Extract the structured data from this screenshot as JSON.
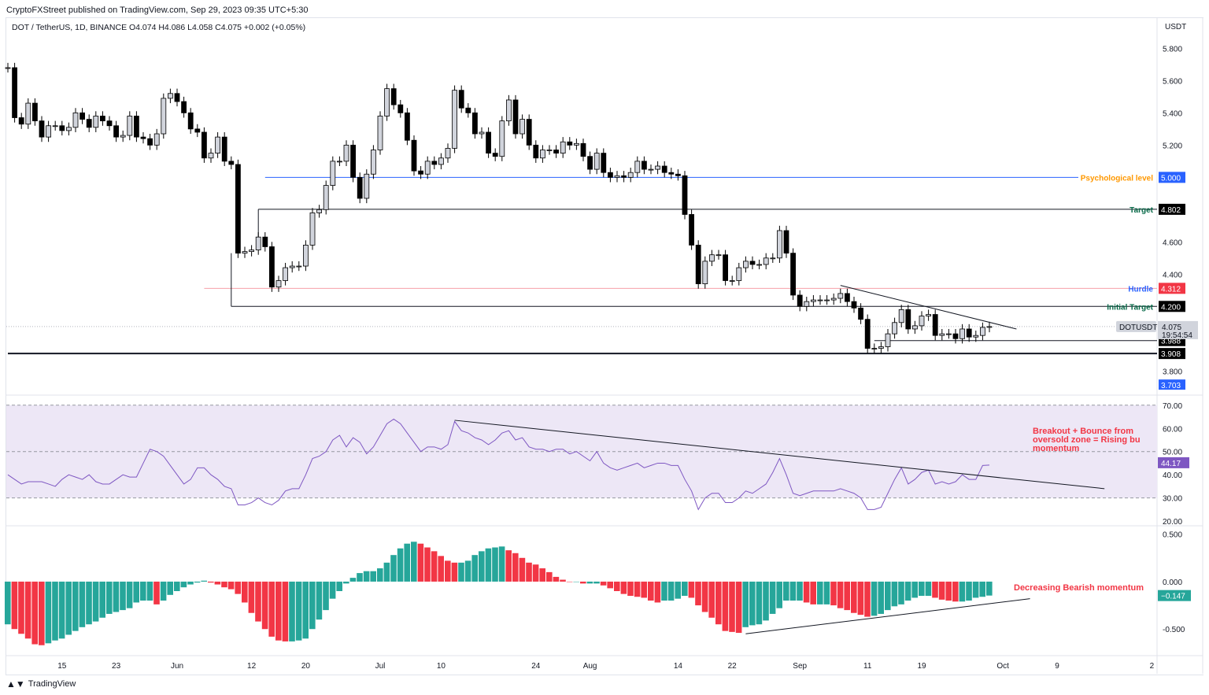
{
  "header": {
    "published": "CryptoFXStreet published on TradingView.com, Sep 29, 2023 09:35 UTC+5:30",
    "symbol_line": "DOT / TetherUS, 1D, BINANCE  O4.074  H4.086  L4.058  C4.075  +0.002 (+0.05%)",
    "currency": "USDT"
  },
  "footer": {
    "brand": "TradingView"
  },
  "colors": {
    "up_fill": "#d1d4dc",
    "down_fill": "#000000",
    "hist_up": "#26a69a",
    "hist_down": "#f23645",
    "rsi": "#7e57c2",
    "rsi_band": "#ede7f6",
    "blue": "#2962ff",
    "red": "#f23645",
    "orange": "#ff9800",
    "green_text": "#0a6b4a"
  },
  "chart_data": [
    {
      "type": "candlestick",
      "title": "DOT / TetherUS, 1D, BINANCE",
      "start_date": "2023-05-07",
      "close": [
        5.68,
        5.37,
        5.33,
        5.46,
        5.35,
        5.25,
        5.32,
        5.32,
        5.29,
        5.31,
        5.4,
        5.36,
        5.31,
        5.38,
        5.35,
        5.32,
        5.25,
        5.26,
        5.38,
        5.25,
        5.24,
        5.2,
        5.27,
        5.49,
        5.52,
        5.47,
        5.4,
        5.3,
        5.28,
        5.12,
        5.15,
        5.25,
        5.1,
        5.08,
        4.53,
        4.54,
        4.55,
        4.63,
        4.57,
        4.32,
        4.36,
        4.44,
        4.45,
        4.45,
        4.58,
        4.78,
        4.8,
        4.95,
        5.1,
        5.1,
        5.2,
        5.0,
        4.87,
        5.02,
        5.17,
        5.38,
        5.55,
        5.45,
        5.4,
        5.23,
        5.04,
        5.02,
        5.1,
        5.08,
        5.12,
        5.18,
        5.54,
        5.43,
        5.4,
        5.27,
        5.28,
        5.15,
        5.13,
        5.35,
        5.48,
        5.27,
        5.36,
        5.2,
        5.12,
        5.17,
        5.17,
        5.15,
        5.22,
        5.2,
        5.21,
        5.13,
        5.05,
        5.15,
        5.03,
        5.0,
        5.01,
        5.0,
        5.03,
        5.1,
        5.05,
        5.05,
        5.07,
        5.03,
        5.02,
        5.01,
        4.77,
        4.58,
        4.34,
        4.48,
        4.52,
        4.52,
        4.36,
        4.36,
        4.44,
        4.48,
        4.46,
        4.46,
        4.5,
        4.5,
        4.67,
        4.53,
        4.27,
        4.2,
        4.23,
        4.24,
        4.24,
        4.24,
        4.25,
        4.28,
        4.23,
        4.19,
        4.12,
        3.94,
        3.94,
        3.95,
        4.03,
        4.1,
        4.18,
        4.06,
        4.08,
        4.14,
        4.15,
        4.02,
        4.03,
        4.03,
        4.0,
        4.06,
        4.01,
        4.02,
        4.07,
        4.075
      ],
      "last": {
        "open": 4.074,
        "high": 4.086,
        "low": 4.058,
        "close": 4.075
      },
      "ylim": [
        3.65,
        5.88
      ],
      "y_ticks": [
        "5.800",
        "5.600",
        "5.400",
        "5.200",
        "5.000",
        "4.800",
        "4.600",
        "4.400",
        "4.200",
        "4.000",
        "3.800"
      ],
      "levels": [
        {
          "label": "Psychological level",
          "value": "5.000",
          "from": "2023-06-14",
          "color": "#2962ff",
          "text_color": "#ff9800"
        },
        {
          "label": "Target",
          "value": "4.802",
          "from": "2023-06-13",
          "color": "#131722",
          "text_color": "#0a6b4a"
        },
        {
          "label": "Hurdle",
          "value": "4.312",
          "from": "2023-06-05",
          "color": "#f7a1a9",
          "text_color": "#2962ff"
        },
        {
          "label": "Initial Target",
          "value": "4.200",
          "from": "2023-06-09",
          "color": "#131722",
          "text_color": "#0a6b4a"
        },
        {
          "label": "",
          "value": "3.988",
          "from": "2023-09-12",
          "color": "#131722",
          "text_color": ""
        },
        {
          "label": "",
          "value": "3.908",
          "from": "2023-05-07",
          "color": "#131722",
          "text_color": ""
        }
      ],
      "price_tag": {
        "symbol": "DOTUSDT",
        "price": "4.075",
        "countdown": "19:54:54"
      },
      "extra_tag": "3.703",
      "trendline": {
        "from": [
          "2023-09-07",
          4.33
        ],
        "to": [
          "2023-10-03",
          4.06
        ]
      }
    },
    {
      "type": "line",
      "series_label": "RSI",
      "ylim": [
        18,
        74
      ],
      "y_ticks": [
        "70.00",
        "60.00",
        "50.00",
        "40.00",
        "30.00",
        "20.00"
      ],
      "band": [
        30,
        70
      ],
      "values": [
        40,
        38,
        36,
        37,
        37,
        37,
        36,
        35,
        38,
        40,
        39,
        38,
        40,
        37,
        36,
        36,
        38,
        40,
        39,
        39,
        45,
        51,
        50,
        48,
        44,
        40,
        36,
        38,
        43,
        43,
        40,
        38,
        35,
        34,
        27,
        27,
        28,
        30,
        28,
        27,
        29,
        33,
        34,
        34,
        40,
        47,
        48,
        50,
        55,
        57,
        52,
        56,
        54,
        49,
        52,
        57,
        62,
        64,
        62,
        58,
        54,
        50,
        52,
        52,
        51,
        53,
        63,
        59,
        58,
        56,
        55,
        53,
        55,
        58,
        59,
        55,
        56,
        52,
        51,
        51,
        50,
        51,
        51,
        49,
        50,
        48,
        46,
        50,
        45,
        43,
        42,
        43,
        44,
        45,
        43,
        44,
        45,
        45,
        44,
        44,
        38,
        33,
        25,
        30,
        32,
        32,
        28,
        28,
        30,
        33,
        32,
        34,
        36,
        41,
        47,
        40,
        32,
        31,
        32,
        33,
        33,
        33,
        33,
        34,
        33,
        32,
        30,
        25,
        25,
        26,
        32,
        38,
        43,
        36,
        38,
        41,
        42,
        36,
        37,
        36,
        37,
        40,
        38,
        38,
        44,
        44.17
      ],
      "last_label": "44.17",
      "trendline": {
        "from": [
          "2023-07-12",
          63.5
        ],
        "to": [
          "2023-10-16",
          34
        ]
      },
      "annotation": "Breakout + Bounce from oversold zone = Rising bu momentum"
    },
    {
      "type": "bar",
      "ylim": [
        -0.78,
        0.58
      ],
      "y_ticks": [
        "0.500",
        "0.000",
        "-0.500"
      ],
      "values": [
        -0.45,
        -0.5,
        -0.55,
        -0.6,
        -0.66,
        -0.67,
        -0.65,
        -0.62,
        -0.6,
        -0.56,
        -0.52,
        -0.48,
        -0.45,
        -0.42,
        -0.38,
        -0.34,
        -0.32,
        -0.3,
        -0.28,
        -0.22,
        -0.2,
        -0.2,
        -0.24,
        -0.2,
        -0.14,
        -0.1,
        -0.06,
        -0.03,
        -0.01,
        0.01,
        -0.01,
        -0.03,
        -0.06,
        -0.08,
        -0.13,
        -0.22,
        -0.33,
        -0.42,
        -0.5,
        -0.58,
        -0.62,
        -0.63,
        -0.63,
        -0.62,
        -0.6,
        -0.5,
        -0.4,
        -0.3,
        -0.18,
        -0.1,
        -0.02,
        0.04,
        0.09,
        0.11,
        0.11,
        0.14,
        0.2,
        0.28,
        0.35,
        0.4,
        0.42,
        0.4,
        0.36,
        0.32,
        0.27,
        0.22,
        0.2,
        0.2,
        0.22,
        0.28,
        0.32,
        0.35,
        0.36,
        0.37,
        0.33,
        0.3,
        0.25,
        0.2,
        0.18,
        0.14,
        0.1,
        0.05,
        0.02,
        0.0,
        0.0,
        -0.02,
        -0.02,
        -0.02,
        -0.04,
        -0.07,
        -0.1,
        -0.13,
        -0.15,
        -0.16,
        -0.17,
        -0.2,
        -0.22,
        -0.2,
        -0.2,
        -0.18,
        -0.15,
        -0.17,
        -0.25,
        -0.32,
        -0.38,
        -0.45,
        -0.52,
        -0.53,
        -0.54,
        -0.48,
        -0.46,
        -0.45,
        -0.41,
        -0.34,
        -0.28,
        -0.2,
        -0.2,
        -0.2,
        -0.22,
        -0.24,
        -0.24,
        -0.24,
        -0.25,
        -0.28,
        -0.3,
        -0.33,
        -0.35,
        -0.37,
        -0.36,
        -0.34,
        -0.3,
        -0.26,
        -0.24,
        -0.2,
        -0.17,
        -0.15,
        -0.15,
        -0.17,
        -0.19,
        -0.2,
        -0.21,
        -0.21,
        -0.2,
        -0.17,
        -0.16,
        -0.147
      ],
      "last_label": "−0.147",
      "trendline": {
        "from": [
          "2023-08-24",
          -0.55
        ],
        "to": [
          "2023-10-05",
          -0.18
        ]
      },
      "annotation": "Decreasing Bearish momentum"
    }
  ],
  "x_ticks": [
    {
      "label": "15",
      "date": "2023-05-15"
    },
    {
      "label": "23",
      "date": "2023-05-23"
    },
    {
      "label": "Jun",
      "date": "2023-06-01"
    },
    {
      "label": "12",
      "date": "2023-06-12"
    },
    {
      "label": "20",
      "date": "2023-06-20"
    },
    {
      "label": "Jul",
      "date": "2023-07-01"
    },
    {
      "label": "10",
      "date": "2023-07-10"
    },
    {
      "label": "24",
      "date": "2023-07-24"
    },
    {
      "label": "Aug",
      "date": "2023-08-01"
    },
    {
      "label": "14",
      "date": "2023-08-14"
    },
    {
      "label": "22",
      "date": "2023-08-22"
    },
    {
      "label": "Sep",
      "date": "2023-09-01"
    },
    {
      "label": "11",
      "date": "2023-09-11"
    },
    {
      "label": "19",
      "date": "2023-09-19"
    },
    {
      "label": "Oct",
      "date": "2023-10-01"
    },
    {
      "label": "9",
      "date": "2023-10-09"
    },
    {
      "label": "2",
      "date": "2023-10-23"
    }
  ]
}
